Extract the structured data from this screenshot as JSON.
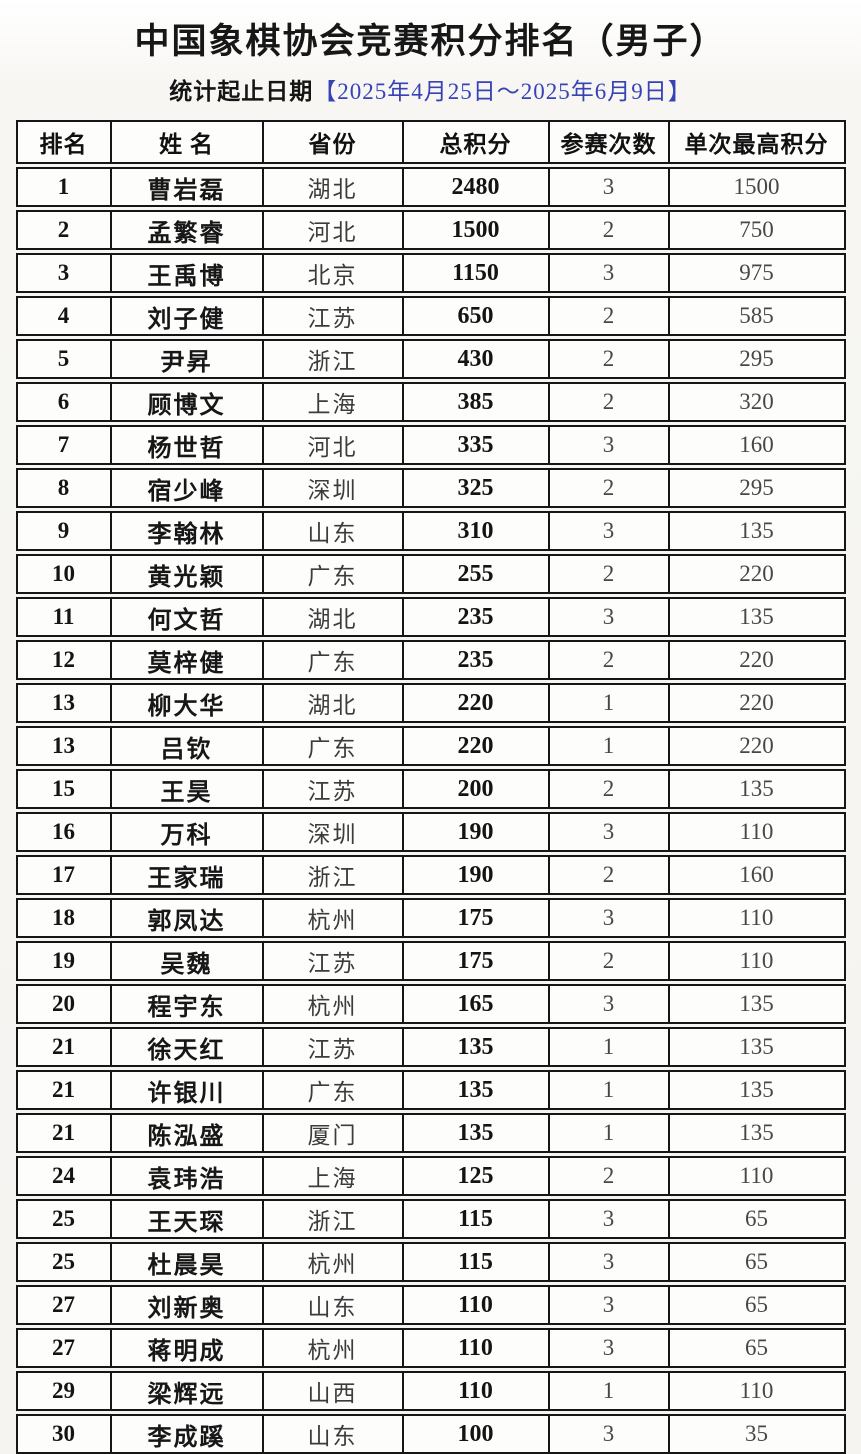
{
  "title": "中国象棋协会竞赛积分排名（男子）",
  "subtitle": {
    "label": "统计起止日期",
    "date_range": "【2025年4月25日～2025年6月9日】"
  },
  "colors": {
    "date_blue": "#3743b5",
    "border_black": "#161616"
  },
  "table": {
    "headers": [
      "排名",
      "姓 名",
      "省份",
      "总积分",
      "参赛次数",
      "单次最高积分"
    ],
    "column_names": [
      "rank-cell",
      "name-cell",
      "province-cell",
      "total-points-cell",
      "events-count-cell",
      "best-single-points-cell"
    ],
    "rows": [
      [
        "1",
        "曹岩磊",
        "湖北",
        "2480",
        "3",
        "1500"
      ],
      [
        "2",
        "孟繁睿",
        "河北",
        "1500",
        "2",
        "750"
      ],
      [
        "3",
        "王禹博",
        "北京",
        "1150",
        "3",
        "975"
      ],
      [
        "4",
        "刘子健",
        "江苏",
        "650",
        "2",
        "585"
      ],
      [
        "5",
        "尹昇",
        "浙江",
        "430",
        "2",
        "295"
      ],
      [
        "6",
        "顾博文",
        "上海",
        "385",
        "2",
        "320"
      ],
      [
        "7",
        "杨世哲",
        "河北",
        "335",
        "3",
        "160"
      ],
      [
        "8",
        "宿少峰",
        "深圳",
        "325",
        "2",
        "295"
      ],
      [
        "9",
        "李翰林",
        "山东",
        "310",
        "3",
        "135"
      ],
      [
        "10",
        "黄光颖",
        "广东",
        "255",
        "2",
        "220"
      ],
      [
        "11",
        "何文哲",
        "湖北",
        "235",
        "3",
        "135"
      ],
      [
        "12",
        "莫梓健",
        "广东",
        "235",
        "2",
        "220"
      ],
      [
        "13",
        "柳大华",
        "湖北",
        "220",
        "1",
        "220"
      ],
      [
        "13",
        "吕钦",
        "广东",
        "220",
        "1",
        "220"
      ],
      [
        "15",
        "王昊",
        "江苏",
        "200",
        "2",
        "135"
      ],
      [
        "16",
        "万科",
        "深圳",
        "190",
        "3",
        "110"
      ],
      [
        "17",
        "王家瑞",
        "浙江",
        "190",
        "2",
        "160"
      ],
      [
        "18",
        "郭凤达",
        "杭州",
        "175",
        "3",
        "110"
      ],
      [
        "19",
        "吴魏",
        "江苏",
        "175",
        "2",
        "110"
      ],
      [
        "20",
        "程宇东",
        "杭州",
        "165",
        "3",
        "135"
      ],
      [
        "21",
        "徐天红",
        "江苏",
        "135",
        "1",
        "135"
      ],
      [
        "21",
        "许银川",
        "广东",
        "135",
        "1",
        "135"
      ],
      [
        "21",
        "陈泓盛",
        "厦门",
        "135",
        "1",
        "135"
      ],
      [
        "24",
        "袁玮浩",
        "上海",
        "125",
        "2",
        "110"
      ],
      [
        "25",
        "王天琛",
        "浙江",
        "115",
        "3",
        "65"
      ],
      [
        "25",
        "杜晨昊",
        "杭州",
        "115",
        "3",
        "65"
      ],
      [
        "27",
        "刘新奥",
        "山东",
        "110",
        "3",
        "65"
      ],
      [
        "27",
        "蒋明成",
        "杭州",
        "110",
        "3",
        "65"
      ],
      [
        "29",
        "梁辉远",
        "山西",
        "110",
        "1",
        "110"
      ],
      [
        "30",
        "李成蹊",
        "山东",
        "100",
        "3",
        "35"
      ]
    ]
  }
}
